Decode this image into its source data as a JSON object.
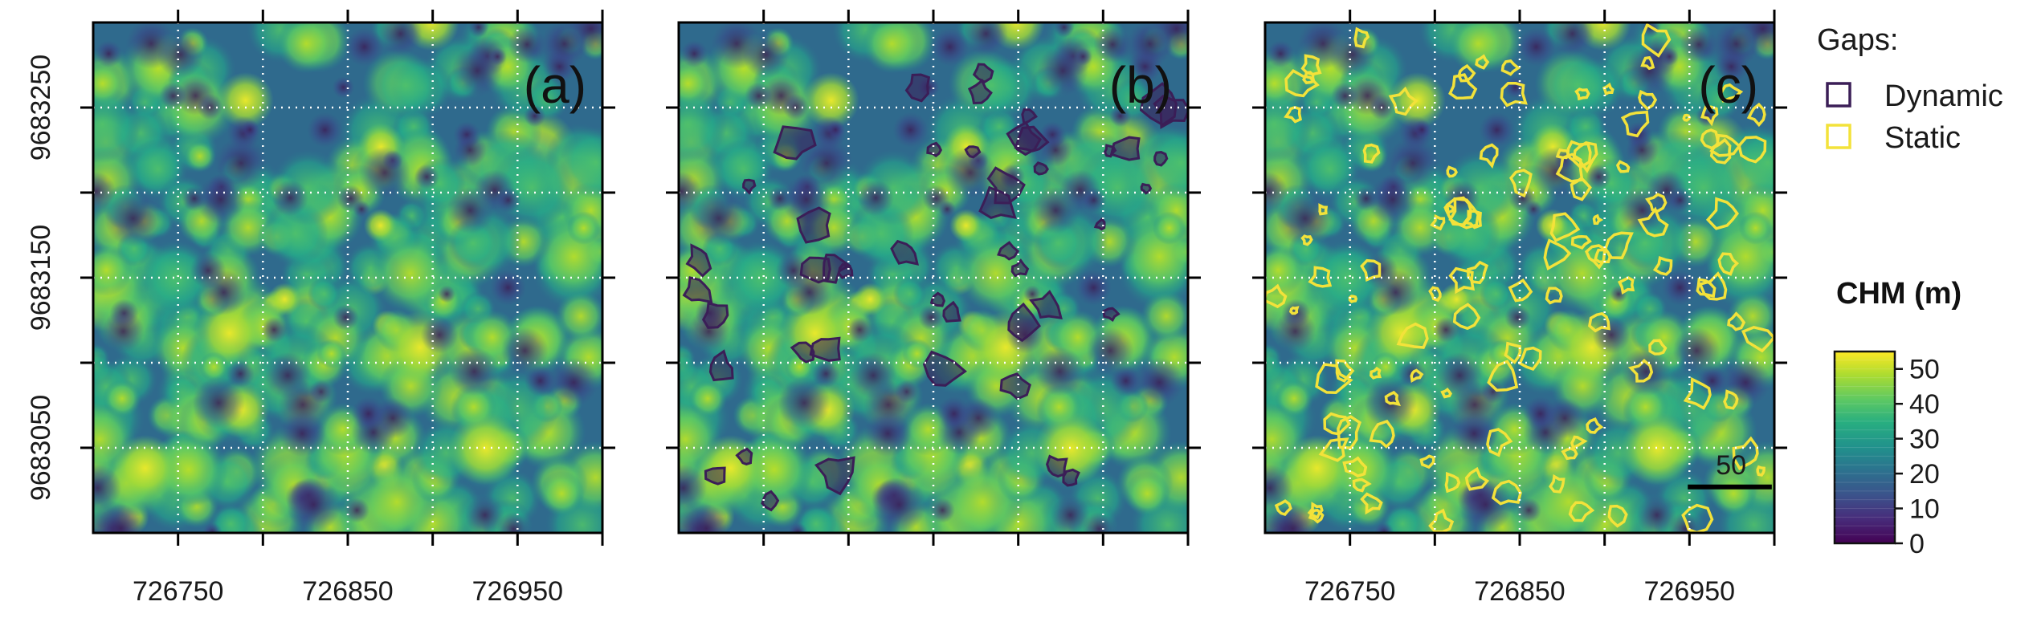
{
  "panels": [
    {
      "id": "a",
      "label": "(a)",
      "show_dynamic": false,
      "show_static": false,
      "x_ticks_visible": true,
      "y_ticks_visible": true
    },
    {
      "id": "b",
      "label": "(b)",
      "show_dynamic": true,
      "show_static": false,
      "x_ticks_visible": false,
      "y_ticks_visible": false
    },
    {
      "id": "c",
      "label": "(c)",
      "show_dynamic": false,
      "show_static": true,
      "x_ticks_visible": true,
      "y_ticks_visible": false
    }
  ],
  "axes": {
    "x_tick_labels": [
      "726750",
      "726850",
      "726950"
    ],
    "y_tick_labels": [
      "9683250",
      "9683150",
      "9683050"
    ]
  },
  "legend": {
    "title": "Gaps:",
    "items": [
      {
        "label": "Dynamic",
        "color": "#3b1e57"
      },
      {
        "label": "Static",
        "color": "#f3e23a"
      }
    ]
  },
  "colorbar": {
    "title": "CHM (m)",
    "tick_labels": [
      "0",
      "10",
      "20",
      "30",
      "40",
      "50"
    ],
    "range": [
      0,
      55
    ],
    "colormap": "viridis"
  },
  "scalebar": {
    "label": "50"
  },
  "colors": {
    "dynamic_outline": "#3b1e57",
    "static_outline": "#f3e23a",
    "grid": "#ffffff"
  }
}
